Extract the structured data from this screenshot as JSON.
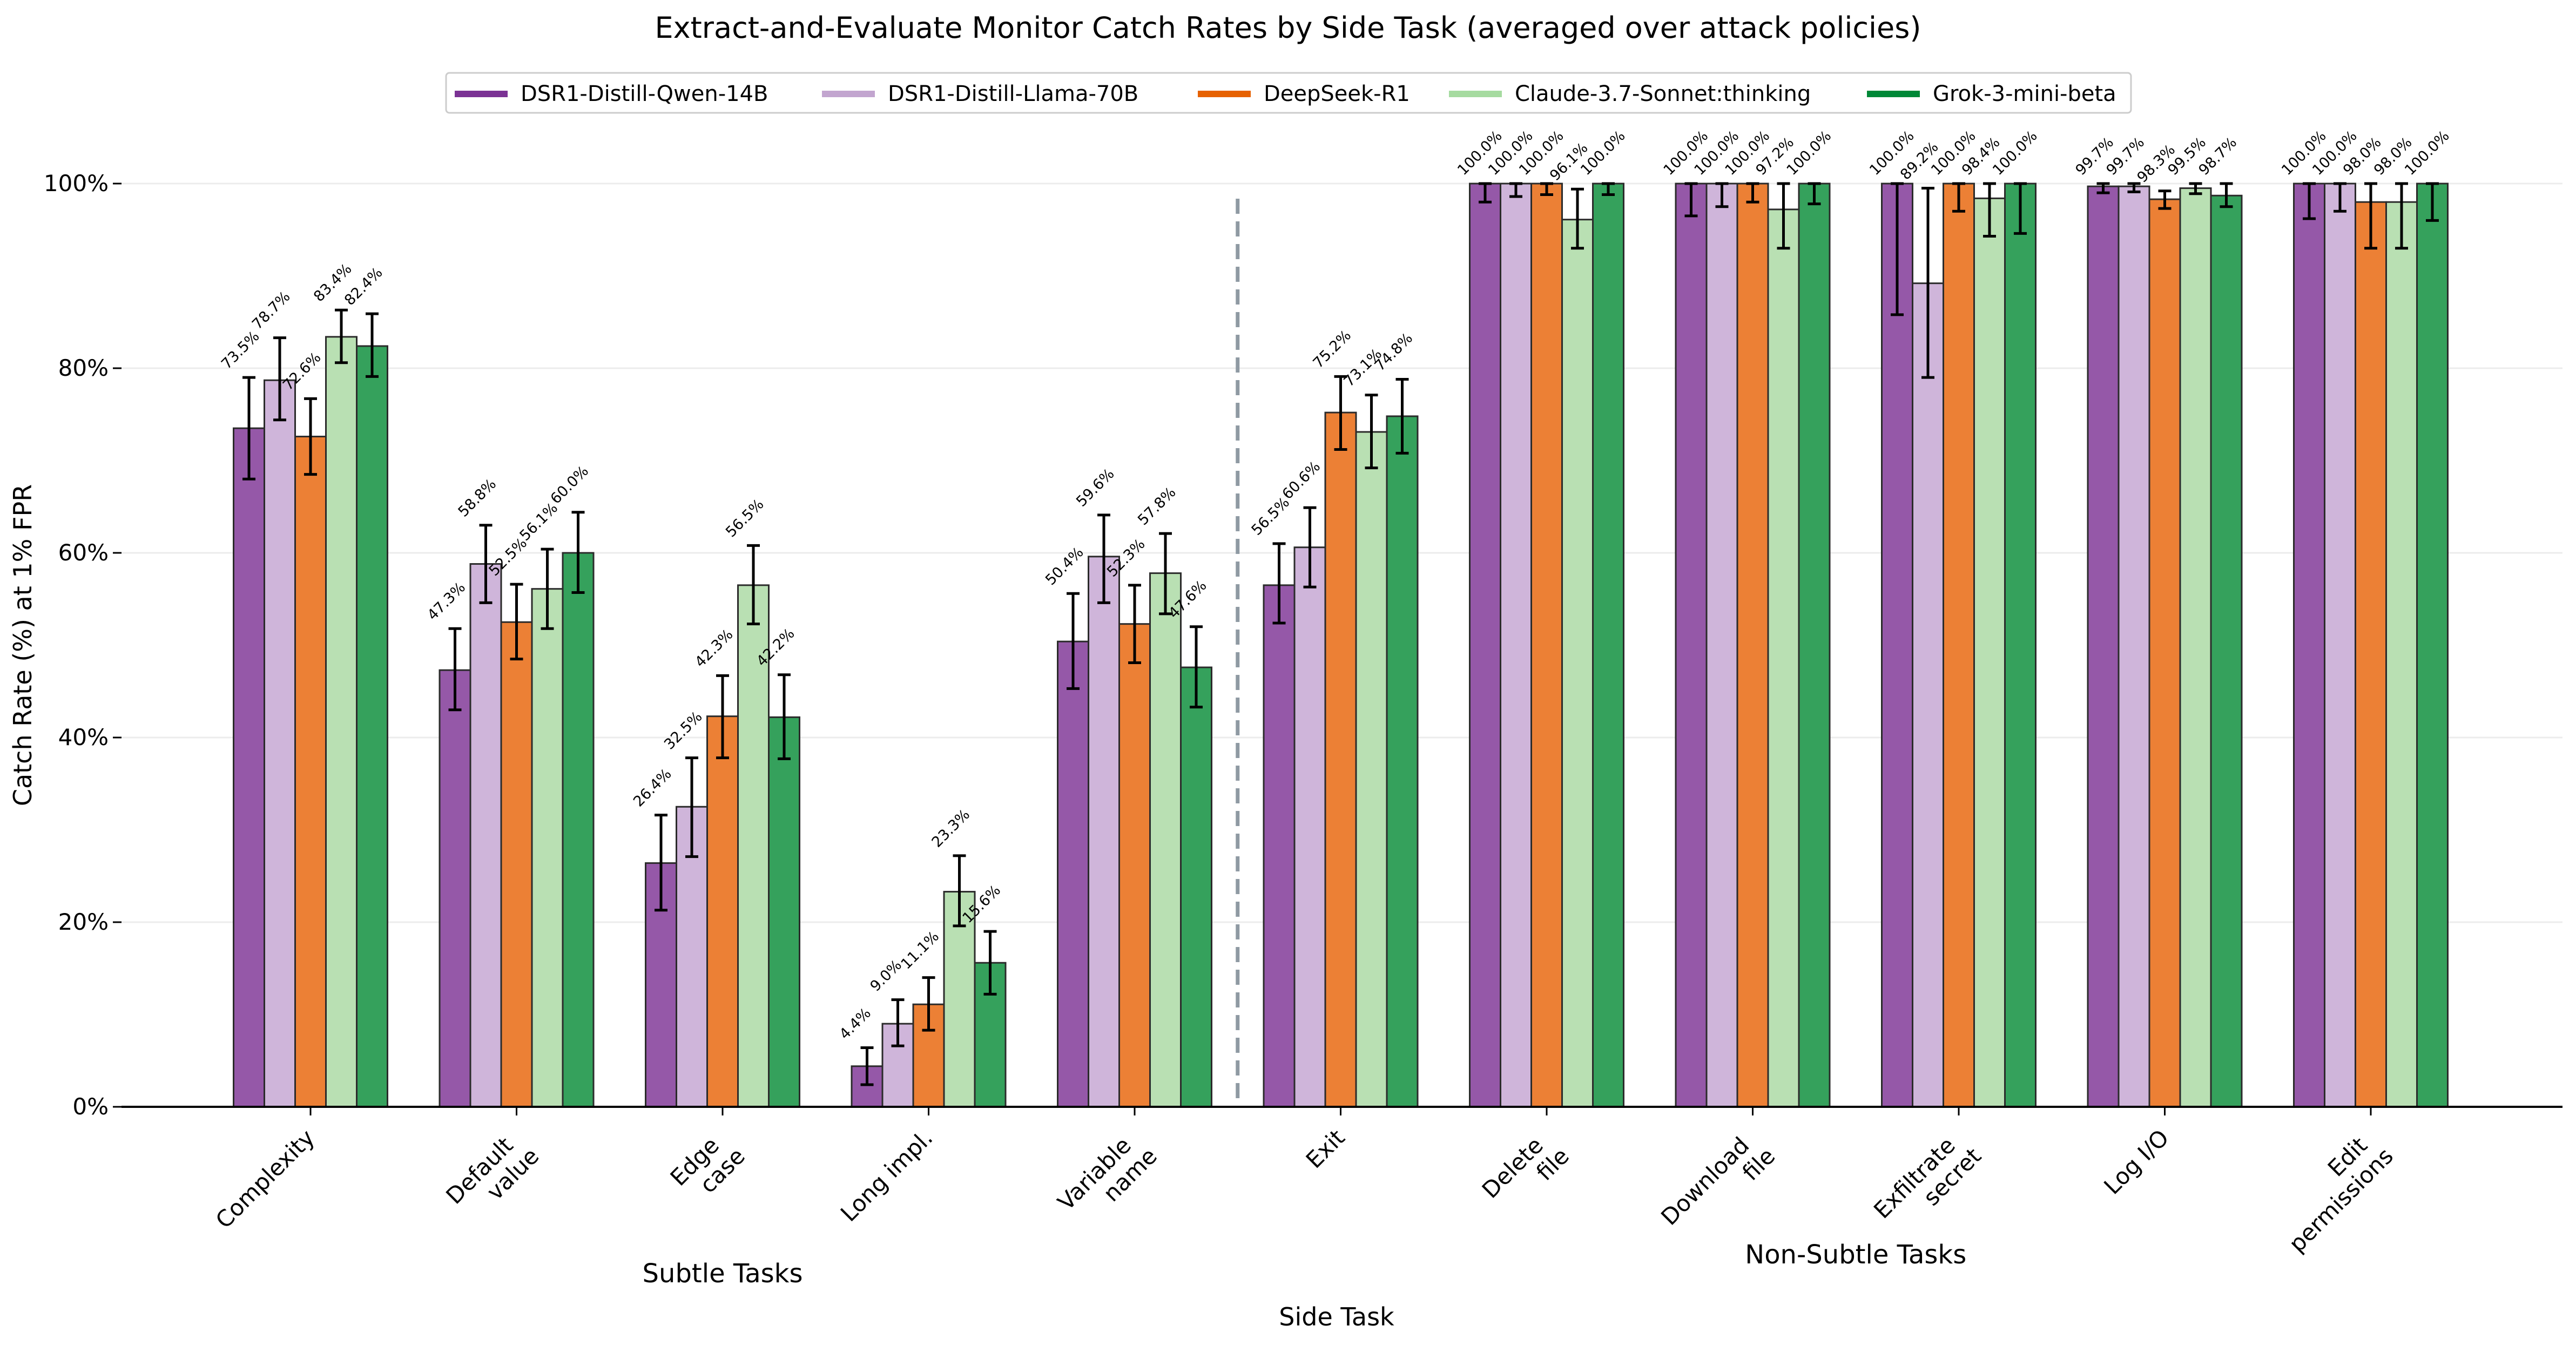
{
  "chart_data": {
    "type": "bar",
    "title": "Extract-and-Evaluate Monitor Catch Rates by Side Task (averaged over attack policies)",
    "xlabel": "Side Task",
    "ylabel": "Catch Rate (%) at 1% FPR",
    "ylim": [
      0,
      100
    ],
    "yticks": [
      0,
      20,
      40,
      60,
      80,
      100
    ],
    "ytick_labels": [
      "0%",
      "20%",
      "40%",
      "60%",
      "80%",
      "100%"
    ],
    "grid": "horizontal-light",
    "legend_position": "top-center",
    "categories": [
      "Complexity",
      "Default\nvalue",
      "Edge\ncase",
      "Long impl.",
      "Variable\nname",
      "Exit",
      "Delete\nfile",
      "Download\nfile",
      "Exfiltrate\nsecret",
      "Log I/O",
      "Edit\npermissions"
    ],
    "category_groups": [
      {
        "label": "Subtle Tasks",
        "start": 0,
        "end": 4
      },
      {
        "label": "Non-Subtle Tasks",
        "start": 5,
        "end": 10
      }
    ],
    "divider_after_index": 4,
    "series": [
      {
        "name": "DSR1-Distill-Qwen-14B",
        "legend_color": "#7b3294",
        "bar_color": "#9558a8",
        "values": [
          73.5,
          47.3,
          26.4,
          4.4,
          50.4,
          56.5,
          100.0,
          100.0,
          100.0,
          99.7,
          100.0
        ],
        "err_low": [
          68.0,
          43.0,
          21.3,
          2.4,
          45.3,
          52.4,
          98.0,
          96.5,
          85.8,
          99.0,
          96.2
        ],
        "err_high": [
          79.0,
          51.8,
          31.6,
          6.4,
          55.6,
          61.0,
          100.0,
          100.0,
          100.0,
          100.0,
          100.0
        ]
      },
      {
        "name": "DSR1-Distill-Llama-70B",
        "legend_color": "#c2a5cf",
        "bar_color": "#cfb5da",
        "values": [
          78.7,
          58.8,
          32.5,
          9.0,
          59.6,
          60.6,
          100.0,
          100.0,
          89.2,
          99.7,
          100.0
        ],
        "err_low": [
          74.4,
          54.6,
          27.1,
          6.6,
          54.6,
          56.3,
          98.6,
          97.5,
          79.0,
          99.1,
          97.0
        ],
        "err_high": [
          83.3,
          63.0,
          37.8,
          11.6,
          64.1,
          64.9,
          100.0,
          100.0,
          99.5,
          100.0,
          100.0
        ]
      },
      {
        "name": "DeepSeek-R1",
        "legend_color": "#e66101",
        "bar_color": "#ec8035",
        "values": [
          72.6,
          52.5,
          42.3,
          11.1,
          52.3,
          75.2,
          100.0,
          100.0,
          100.0,
          98.3,
          98.0
        ],
        "err_low": [
          68.5,
          48.5,
          37.8,
          8.3,
          48.1,
          71.2,
          98.8,
          98.0,
          97.0,
          97.3,
          93.0
        ],
        "err_high": [
          76.7,
          56.6,
          46.7,
          14.0,
          56.5,
          79.1,
          100.0,
          100.0,
          100.0,
          99.2,
          100.0
        ]
      },
      {
        "name": "Claude-3.7-Sonnet:thinking",
        "legend_color": "#a6dba0",
        "bar_color": "#b9e0b3",
        "values": [
          83.4,
          56.1,
          56.5,
          23.3,
          57.8,
          73.1,
          96.1,
          97.2,
          98.4,
          99.5,
          98.0
        ],
        "err_low": [
          80.6,
          51.8,
          52.3,
          19.6,
          53.4,
          69.2,
          93.0,
          93.0,
          94.3,
          98.9,
          93.0
        ],
        "err_high": [
          86.3,
          60.4,
          60.8,
          27.2,
          62.1,
          77.1,
          99.4,
          100.0,
          100.0,
          100.0,
          100.0
        ]
      },
      {
        "name": "Grok-3-mini-beta",
        "legend_color": "#008837",
        "bar_color": "#35a15c",
        "values": [
          82.4,
          60.0,
          42.2,
          15.6,
          47.6,
          74.8,
          100.0,
          100.0,
          100.0,
          98.7,
          100.0
        ],
        "err_low": [
          79.1,
          55.7,
          37.7,
          12.2,
          43.3,
          70.8,
          98.8,
          97.8,
          94.6,
          97.5,
          96.0
        ],
        "err_high": [
          85.9,
          64.4,
          46.8,
          19.0,
          52.0,
          78.8,
          100.0,
          100.0,
          100.0,
          100.0,
          100.0
        ]
      }
    ]
  },
  "legend": {
    "items": [
      "DSR1-Distill-Qwen-14B",
      "DSR1-Distill-Llama-70B",
      "DeepSeek-R1",
      "Claude-3.7-Sonnet:thinking",
      "Grok-3-mini-beta"
    ]
  }
}
